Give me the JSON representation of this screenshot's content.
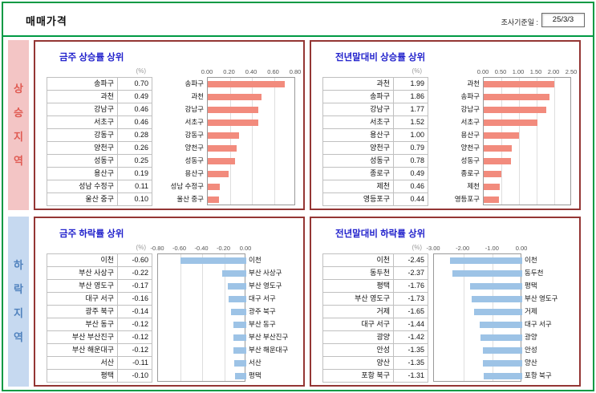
{
  "header": {
    "title": "매매가격",
    "survey_label": "조사기준일 :",
    "survey_date": "25/3/3"
  },
  "sidebar": {
    "rising_label": "상승지역",
    "falling_label": "하락지역"
  },
  "colors": {
    "accent_green": "#009a44",
    "panel_border": "#943634",
    "title_blue": "#2222cc",
    "rising_bg": "#f3c5c5",
    "rising_text": "#e05a52",
    "falling_bg": "#c6d9f0",
    "falling_text": "#4f81bd",
    "rising_bar": "#f28b7d",
    "falling_bar": "#9dc3e6"
  },
  "chart_data": [
    {
      "type": "bar",
      "orientation": "horizontal",
      "title": "금주 상승률 상위",
      "unit": "(%)",
      "categories": [
        "송파구",
        "과천",
        "강남구",
        "서초구",
        "강동구",
        "양천구",
        "성동구",
        "용산구",
        "성남 수정구",
        "울산 중구"
      ],
      "values": [
        0.7,
        0.49,
        0.46,
        0.46,
        0.28,
        0.26,
        0.25,
        0.19,
        0.11,
        0.1
      ],
      "xlim": [
        0,
        0.8
      ],
      "ticks": [
        "0.00",
        "0.20",
        "0.40",
        "0.60",
        "0.80"
      ],
      "tick_values": [
        0,
        0.2,
        0.4,
        0.6,
        0.8
      ],
      "bar_color": "#f28b7d",
      "labels_side": "left",
      "grid": true,
      "legend": false
    },
    {
      "type": "bar",
      "orientation": "horizontal",
      "title": "전년말대비 상승률 상위",
      "unit": "(%)",
      "categories": [
        "과천",
        "송파구",
        "강남구",
        "서초구",
        "용산구",
        "양천구",
        "성동구",
        "종로구",
        "제천",
        "영등포구"
      ],
      "values": [
        1.99,
        1.86,
        1.77,
        1.52,
        1.0,
        0.79,
        0.78,
        0.49,
        0.46,
        0.44
      ],
      "xlim": [
        0,
        2.5
      ],
      "ticks": [
        "0.00",
        "0.50",
        "1.00",
        "1.50",
        "2.00",
        "2.50"
      ],
      "tick_values": [
        0,
        0.5,
        1.0,
        1.5,
        2.0,
        2.5
      ],
      "bar_color": "#f28b7d",
      "labels_side": "left",
      "grid": true,
      "legend": false
    },
    {
      "type": "bar",
      "orientation": "horizontal",
      "title": "금주 하락률 상위",
      "unit": "(%)",
      "categories": [
        "이천",
        "부산 사상구",
        "부산 영도구",
        "대구 서구",
        "광주 북구",
        "부산 동구",
        "부산 부산진구",
        "부산 해운대구",
        "서산",
        "평택"
      ],
      "values": [
        -0.6,
        -0.22,
        -0.17,
        -0.16,
        -0.14,
        -0.12,
        -0.12,
        -0.12,
        -0.11,
        -0.1
      ],
      "xlim": [
        -0.8,
        0
      ],
      "ticks": [
        "-0.80",
        "-0.60",
        "-0.40",
        "-0.20",
        "0.00"
      ],
      "tick_values": [
        -0.8,
        -0.6,
        -0.4,
        -0.2,
        0
      ],
      "bar_color": "#9dc3e6",
      "labels_side": "right",
      "grid": true,
      "legend": false
    },
    {
      "type": "bar",
      "orientation": "horizontal",
      "title": "전년말대비 하락률 상위",
      "unit": "(%)",
      "categories": [
        "이천",
        "동두천",
        "평택",
        "부산 영도구",
        "거제",
        "대구 서구",
        "광양",
        "안성",
        "양산",
        "포항 북구"
      ],
      "values": [
        -2.45,
        -2.37,
        -1.76,
        -1.73,
        -1.65,
        -1.44,
        -1.42,
        -1.35,
        -1.35,
        -1.31
      ],
      "xlim": [
        -3,
        0
      ],
      "ticks": [
        "-3.00",
        "-2.00",
        "-1.00",
        "0.00"
      ],
      "tick_values": [
        -3,
        -2,
        -1,
        0
      ],
      "bar_color": "#9dc3e6",
      "labels_side": "right",
      "grid": true,
      "legend": false
    }
  ]
}
